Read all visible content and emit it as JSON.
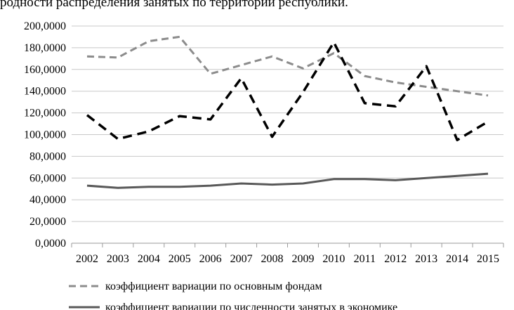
{
  "caption": "родности распределения занятых по территории республики.",
  "chart_data": {
    "type": "line",
    "categories": [
      "2002",
      "2003",
      "2004",
      "2005",
      "2006",
      "2007",
      "2008",
      "2009",
      "2010",
      "2011",
      "2012",
      "2013",
      "2014",
      "2015"
    ],
    "ylim": [
      0,
      200
    ],
    "yticks": [
      "0,0000",
      "20,0000",
      "40,0000",
      "60,0000",
      "80,0000",
      "100,0000",
      "120,0000",
      "140,0000",
      "160,0000",
      "180,0000",
      "200,0000"
    ],
    "grid": "horizontal",
    "legend_position": "bottom",
    "series": [
      {
        "name": "коэффициент вариации по основным фондам",
        "style": "dashed",
        "color": "#8c8c8c",
        "values": [
          172,
          171,
          186,
          190,
          156,
          164,
          172,
          161,
          175,
          154,
          148,
          144,
          140,
          136
        ]
      },
      {
        "name": "",
        "style": "dashed-bold",
        "color": "#000000",
        "values": [
          118,
          96,
          103,
          117,
          114,
          152,
          98,
          139,
          185,
          129,
          126,
          163,
          95,
          112
        ]
      },
      {
        "name": "коэффициент вариации по численности занятых в экономике",
        "style": "solid",
        "color": "#595959",
        "values": [
          53,
          51,
          52,
          52,
          53,
          55,
          54,
          55,
          59,
          59,
          58,
          60,
          62,
          64
        ]
      }
    ]
  }
}
